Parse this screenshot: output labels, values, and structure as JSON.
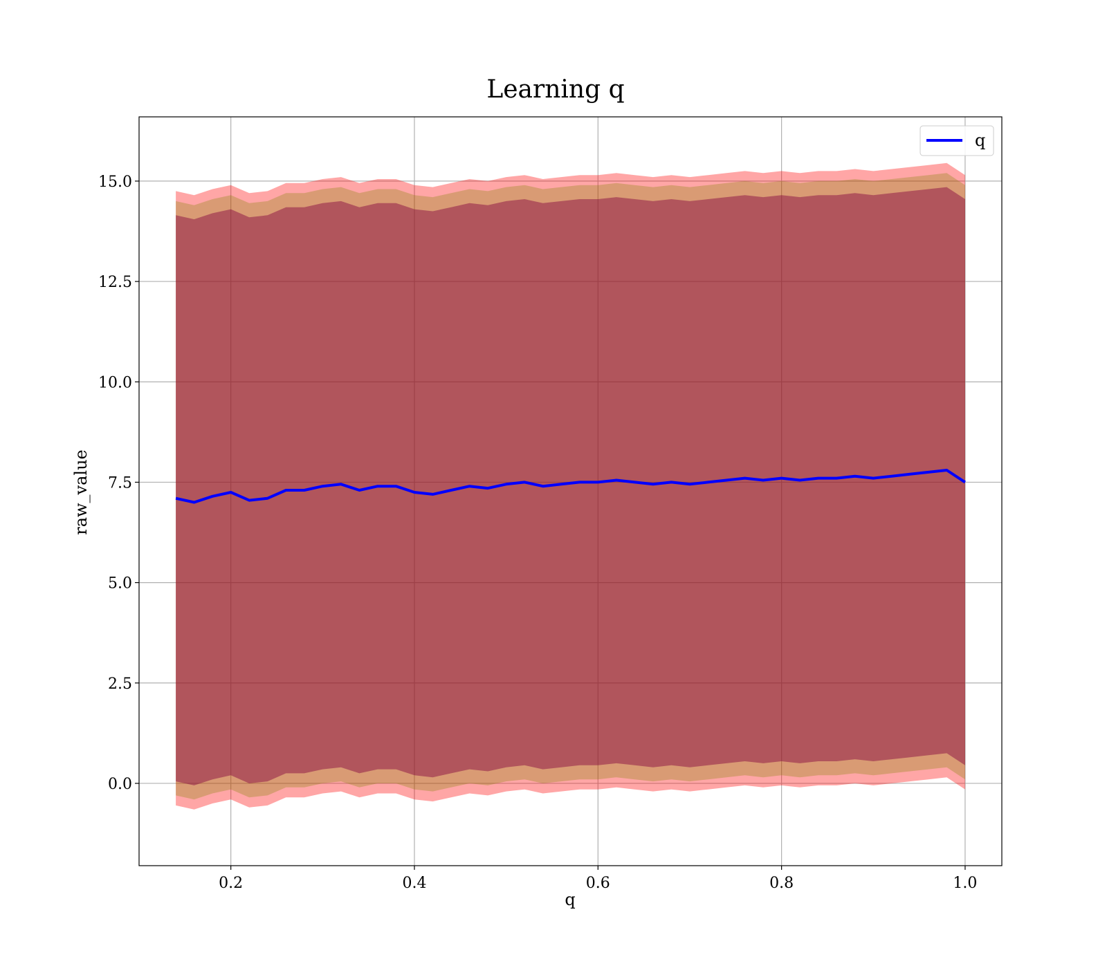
{
  "chart_data": {
    "type": "line",
    "title": "Learning q",
    "xlabel": "q",
    "ylabel": "raw_value",
    "xlim": [
      0.1,
      1.04
    ],
    "ylim": [
      -2.05,
      16.6
    ],
    "xticks": [
      0.2,
      0.4,
      0.6,
      0.8,
      1.0
    ],
    "xtick_labels": [
      "0.2",
      "0.4",
      "0.6",
      "0.8",
      "1.0"
    ],
    "yticks": [
      0.0,
      2.5,
      5.0,
      7.5,
      10.0,
      12.5,
      15.0
    ],
    "ytick_labels": [
      "0.0",
      "2.5",
      "5.0",
      "7.5",
      "10.0",
      "12.5",
      "15.0"
    ],
    "grid": true,
    "legend": {
      "position": "top-right",
      "entries": [
        "q"
      ]
    },
    "series": [
      {
        "name": "q",
        "color": "#0000ff",
        "x": [
          0.14,
          0.16,
          0.18,
          0.2,
          0.22,
          0.24,
          0.26,
          0.28,
          0.3,
          0.32,
          0.34,
          0.36,
          0.38,
          0.4,
          0.42,
          0.44,
          0.46,
          0.48,
          0.5,
          0.52,
          0.54,
          0.56,
          0.58,
          0.6,
          0.62,
          0.64,
          0.66,
          0.68,
          0.7,
          0.72,
          0.74,
          0.76,
          0.78,
          0.8,
          0.82,
          0.84,
          0.86,
          0.88,
          0.9,
          0.92,
          0.94,
          0.96,
          0.98,
          1.0
        ],
        "y": [
          7.1,
          7.0,
          7.15,
          7.25,
          7.05,
          7.1,
          7.3,
          7.3,
          7.4,
          7.45,
          7.3,
          7.4,
          7.4,
          7.25,
          7.2,
          7.3,
          7.4,
          7.35,
          7.45,
          7.5,
          7.4,
          7.45,
          7.5,
          7.5,
          7.55,
          7.5,
          7.45,
          7.5,
          7.45,
          7.5,
          7.55,
          7.6,
          7.55,
          7.6,
          7.55,
          7.6,
          7.6,
          7.65,
          7.6,
          7.65,
          7.7,
          7.75,
          7.8,
          7.5
        ]
      }
    ],
    "bands": [
      {
        "name": "",
        "color": "#ff0000",
        "opacity": 0.35,
        "upper_offset": 7.65,
        "lower_offset": 7.65
      },
      {
        "name": "",
        "color": "#808000",
        "opacity": 0.3,
        "upper_offset": 7.4,
        "lower_offset": 7.4
      },
      {
        "name": "",
        "color": "#800040",
        "opacity": 0.45,
        "upper_offset": 7.05,
        "lower_offset": 7.05
      }
    ]
  }
}
